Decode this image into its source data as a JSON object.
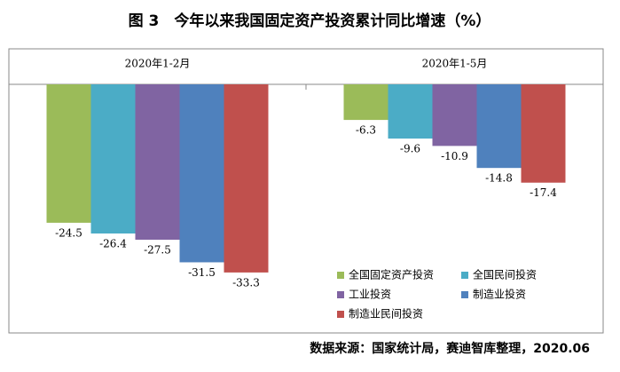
{
  "title": "图 3　今年以来我国固定资产投资累计同比增速（%）",
  "chart_data": {
    "type": "bar",
    "categories": [
      "2020年1-2月",
      "2020年1-5月"
    ],
    "series": [
      {
        "name": "全国固定资产投资",
        "color": "#9bbb59",
        "values": [
          -24.5,
          -6.3
        ]
      },
      {
        "name": "全国民间投资",
        "color": "#4bacc6",
        "values": [
          -26.4,
          -9.6
        ]
      },
      {
        "name": "工业投资",
        "color": "#8064a2",
        "values": [
          -27.5,
          -10.9
        ]
      },
      {
        "name": "制造业投资",
        "color": "#4f81bd",
        "values": [
          -31.5,
          -14.8
        ]
      },
      {
        "name": "制造业民间投资",
        "color": "#c0504d",
        "values": [
          -33.3,
          -17.4
        ]
      }
    ],
    "ylim": [
      -44,
      0
    ]
  },
  "source": "数据来源：国家统计局，赛迪智库整理，2020.06"
}
